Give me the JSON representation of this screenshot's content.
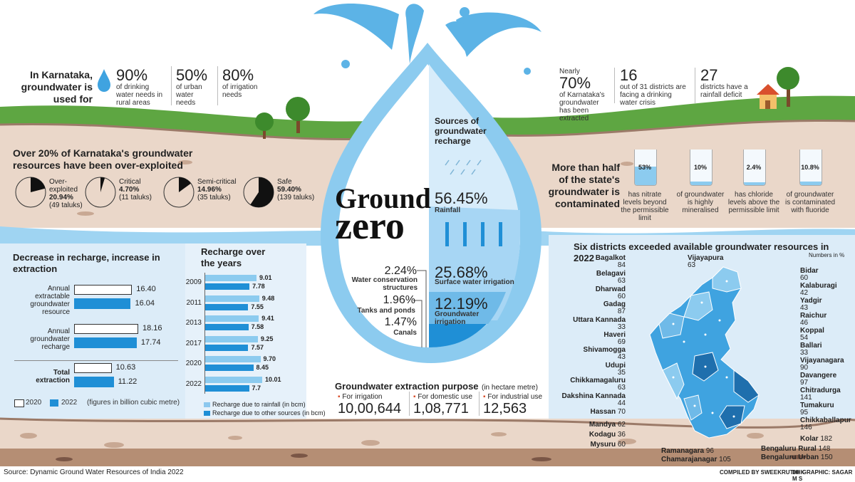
{
  "title": {
    "line1": "Ground",
    "line2": "zero"
  },
  "intro": {
    "lead": "In Karnataka, groundwater is used for",
    "stats": [
      {
        "value": "90%",
        "text": "of drinking water needs in rural areas"
      },
      {
        "value": "50%",
        "text": "of urban water needs"
      },
      {
        "value": "80%",
        "text": "of irrigation needs"
      }
    ]
  },
  "top_right": {
    "stats": [
      {
        "prefix": "Nearly",
        "value": "70%",
        "text": "of Karnataka's groundwater has been extracted"
      },
      {
        "value": "16",
        "text": "out of 31 districts are facing a drinking water crisis"
      },
      {
        "value": "27",
        "text": "districts have a rainfall deficit"
      }
    ]
  },
  "overexploited": {
    "title": "Over 20% of Karnataka's groundwater resources have been over-exploited",
    "items": [
      {
        "label": "Over-exploited",
        "pct": "20.94%",
        "taluks": "(49 taluks)",
        "fraction": 0.2094
      },
      {
        "label": "Critical",
        "pct": "4.70%",
        "taluks": "(11 taluks)",
        "fraction": 0.047
      },
      {
        "label": "Semi-critical",
        "pct": "14.96%",
        "taluks": "(35 taluks)",
        "fraction": 0.1496
      },
      {
        "label": "Safe",
        "pct": "59.40%",
        "taluks": "(139 taluks)",
        "fraction": 0.594
      }
    ]
  },
  "sources": {
    "title": "Sources of groundwater recharge",
    "items": [
      {
        "pct": "56.45%",
        "label": "Rainfall"
      },
      {
        "pct": "25.68%",
        "label": "Surface water irrigation"
      },
      {
        "pct": "12.19%",
        "label": "Groundwater irrigation"
      },
      {
        "pct": "2.24%",
        "label": "Water conservation structures"
      },
      {
        "pct": "1.96%",
        "label": "Tanks and ponds"
      },
      {
        "pct": "1.47%",
        "label": "Canals"
      }
    ]
  },
  "contamination": {
    "title": "More than half of the state's groundwater is contaminated",
    "glasses": [
      {
        "pct": "53%",
        "text": "has nitrate levels beyond the permissible limit",
        "fill": 0.53
      },
      {
        "pct": "10%",
        "text": "of groundwater is highly mineralised",
        "fill": 0.1
      },
      {
        "pct": "2.4%",
        "text": "has chloride levels above the permissible limit",
        "fill": 0.024
      },
      {
        "pct": "10.8%",
        "text": "of groundwater is contaminated with fluoride",
        "fill": 0.108
      }
    ]
  },
  "chart_data": [
    {
      "type": "bar",
      "title": "Decrease in recharge, increase in extraction",
      "categories": [
        "Annual extractable groundwater resource",
        "Annual groundwater recharge",
        "Total extraction"
      ],
      "series": [
        {
          "name": "2020",
          "values": [
            16.4,
            18.16,
            10.63
          ],
          "color": "#ffffff"
        },
        {
          "name": "2022",
          "values": [
            16.04,
            17.74,
            11.22
          ],
          "color": "#1f8fd6"
        }
      ],
      "labels_2020": [
        "16.40",
        "18.16",
        "10.63"
      ],
      "labels_2022": [
        "16.04",
        "17.74",
        "11.22"
      ],
      "note": "(figures in billion cubic metre)",
      "legend": "bottom"
    },
    {
      "type": "bar",
      "title": "Recharge over the years",
      "categories": [
        "2009",
        "2011",
        "2013",
        "2017",
        "2020",
        "2022"
      ],
      "series": [
        {
          "name": "Recharge due to rainfall (in bcm)",
          "values": [
            9.01,
            9.48,
            9.41,
            9.25,
            9.7,
            10.01
          ],
          "color": "#8cc8ee"
        },
        {
          "name": "Recharge due to other sources (in bcm)",
          "values": [
            7.78,
            7.55,
            7.58,
            7.57,
            8.45,
            7.7
          ],
          "color": "#1f8fd6"
        }
      ],
      "labels_rain": [
        "9.01",
        "9.48",
        "9.41",
        "9.25",
        "9.70",
        "10.01"
      ],
      "labels_other": [
        "7.78",
        "7.55",
        "7.58",
        "7.57",
        "8.45",
        "7.7"
      ],
      "legend": "bottom"
    }
  ],
  "extraction_purpose": {
    "title": "Groundwater extraction purpose",
    "unit": "(in hectare metre)",
    "items": [
      {
        "label": "For irrigation",
        "value": "10,00,644"
      },
      {
        "label": "For domestic use",
        "value": "1,08,771"
      },
      {
        "label": "For industrial use",
        "value": "12,563"
      }
    ]
  },
  "districts": {
    "title": "Six districts exceeded available groundwater resources in 2022",
    "unit": "Numbers in %",
    "left": [
      {
        "name": "Bagalkot",
        "value": "84"
      },
      {
        "name": "Belagavi",
        "value": "63"
      },
      {
        "name": "Dharwad",
        "value": "60"
      },
      {
        "name": "Gadag",
        "value": "87"
      },
      {
        "name": "Uttara Kannada",
        "value": "33"
      },
      {
        "name": "Haveri",
        "value": "69"
      },
      {
        "name": "Shivamogga",
        "value": "43"
      },
      {
        "name": "Udupi",
        "value": "35"
      },
      {
        "name": "Chikkamagaluru",
        "value": "63"
      },
      {
        "name": "Dakshina Kannada",
        "value": "44"
      }
    ],
    "left_inline": [
      {
        "name": "Hassan",
        "value": "70"
      },
      {
        "name": "Mandya",
        "value": "62"
      },
      {
        "name": "Kodagu",
        "value": "36"
      },
      {
        "name": "Mysuru",
        "value": "60"
      }
    ],
    "top": {
      "name": "Vijayapura",
      "value": "63"
    },
    "right": [
      {
        "name": "Bidar",
        "value": "60"
      },
      {
        "name": "Kalaburagi",
        "value": "42"
      },
      {
        "name": "Yadgir",
        "value": "43"
      },
      {
        "name": "Raichur",
        "value": "46"
      },
      {
        "name": "Koppal",
        "value": "54"
      },
      {
        "name": "Ballari",
        "value": "33"
      },
      {
        "name": "Vijayanagara",
        "value": "90"
      },
      {
        "name": "Davangere",
        "value": "97"
      },
      {
        "name": "Chitradurga",
        "value": "141"
      },
      {
        "name": "Tumakuru",
        "value": "95"
      },
      {
        "name": "Chikkaballapur",
        "value": "146"
      }
    ],
    "right_inline": [
      {
        "name": "Kolar",
        "value": "182"
      }
    ],
    "bottom": [
      {
        "name": "Ramanagara",
        "value": "96"
      },
      {
        "name": "Chamarajanagar",
        "value": "105"
      },
      {
        "name": "Bengaluru Rural",
        "value": "148"
      },
      {
        "name": "Bengaluru Urban",
        "value": "150"
      }
    ]
  },
  "footer": {
    "source": "Source: Dynamic Ground Water Resources of India 2022",
    "credit1": "COMPILED BY SWEEKRUTHI K",
    "credit2": "DH GRAPHIC: SAGAR M S"
  }
}
